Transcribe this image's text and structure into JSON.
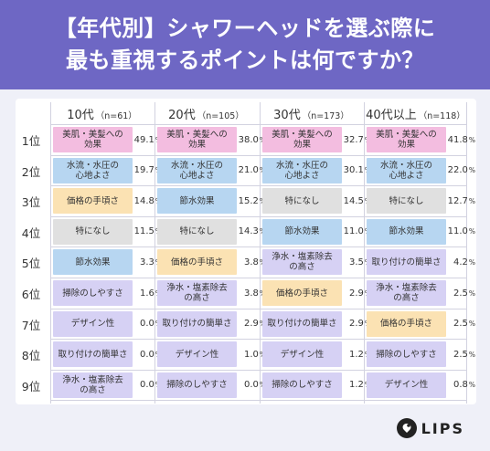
{
  "title": {
    "line1": "【年代別】シャワーヘッドを選ぶ際に",
    "line2": "最も重視するポイントは何ですか？"
  },
  "brand": "LIPS",
  "colors": {
    "header": "#6e67c4",
    "panel": "#eff0f8",
    "美肌・美髪への効果": "#f3bde0",
    "水流・水圧の心地よさ": "#b7d6f1",
    "価格の手頃さ": "#fbe2b3",
    "特になし": "#e0e0e0",
    "節水効果": "#b7d6f1",
    "取り付けの簡単さ": "#d6d1f4",
    "浄水・塩素除去の高さ": "#d6d1f4",
    "掃除のしやすさ": "#d6d1f4",
    "デザイン性": "#d6d1f4"
  },
  "chart_data": {
    "type": "table",
    "rank_labels": [
      "1位",
      "2位",
      "3位",
      "4位",
      "5位",
      "6位",
      "7位",
      "8位",
      "9位"
    ],
    "groups": [
      {
        "name": "10代",
        "n": "（n=61）",
        "items": [
          {
            "label": "美肌・美髪への\n効果",
            "value": "49.1",
            "unit": "%"
          },
          {
            "label": "水流・水圧の\n心地よさ",
            "value": "19.7",
            "unit": "%"
          },
          {
            "label": "価格の手頃さ",
            "value": "14.8",
            "unit": "%"
          },
          {
            "label": "特になし",
            "value": "11.5",
            "unit": "%"
          },
          {
            "label": "節水効果",
            "value": "3.3",
            "unit": "%"
          },
          {
            "label": "掃除のしやすさ",
            "value": "1.6",
            "unit": "%"
          },
          {
            "label": "デザイン性",
            "value": "0.0",
            "unit": "%"
          },
          {
            "label": "取り付けの簡単さ",
            "value": "0.0",
            "unit": "%"
          },
          {
            "label": "浄水・塩素除去\nの高さ",
            "value": "0.0",
            "unit": "%"
          }
        ]
      },
      {
        "name": "20代",
        "n": "（n=105）",
        "items": [
          {
            "label": "美肌・美髪への\n効果",
            "value": "38.0",
            "unit": "%"
          },
          {
            "label": "水流・水圧の\n心地よさ",
            "value": "21.0",
            "unit": "%"
          },
          {
            "label": "節水効果",
            "value": "15.2",
            "unit": "%"
          },
          {
            "label": "特になし",
            "value": "14.3",
            "unit": "%"
          },
          {
            "label": "価格の手頃さ",
            "value": "3.8",
            "unit": "%"
          },
          {
            "label": "浄水・塩素除去\nの高さ",
            "value": "3.8",
            "unit": "%"
          },
          {
            "label": "取り付けの簡単さ",
            "value": "2.9",
            "unit": "%"
          },
          {
            "label": "デザイン性",
            "value": "1.0",
            "unit": "%"
          },
          {
            "label": "掃除のしやすさ",
            "value": "0.0",
            "unit": "%"
          }
        ]
      },
      {
        "name": "30代",
        "n": "（n=173）",
        "items": [
          {
            "label": "美肌・美髪への\n効果",
            "value": "32.7",
            "unit": "%"
          },
          {
            "label": "水流・水圧の\n心地よさ",
            "value": "30.1",
            "unit": "%"
          },
          {
            "label": "特になし",
            "value": "14.5",
            "unit": "%"
          },
          {
            "label": "節水効果",
            "value": "11.0",
            "unit": "%"
          },
          {
            "label": "浄水・塩素除去\nの高さ",
            "value": "3.5",
            "unit": "%"
          },
          {
            "label": "価格の手頃さ",
            "value": "2.9",
            "unit": "%"
          },
          {
            "label": "取り付けの簡単さ",
            "value": "2.9",
            "unit": "%"
          },
          {
            "label": "デザイン性",
            "value": "1.2",
            "unit": "%"
          },
          {
            "label": "掃除のしやすさ",
            "value": "1.2",
            "unit": "%"
          }
        ]
      },
      {
        "name": "40代以上",
        "n": "（n=118）",
        "items": [
          {
            "label": "美肌・美髪への\n効果",
            "value": "41.8",
            "unit": "%"
          },
          {
            "label": "水流・水圧の\n心地よさ",
            "value": "22.0",
            "unit": "%"
          },
          {
            "label": "特になし",
            "value": "12.7",
            "unit": "%"
          },
          {
            "label": "節水効果",
            "value": "11.0",
            "unit": "%"
          },
          {
            "label": "取り付けの簡単さ",
            "value": "4.2",
            "unit": "%"
          },
          {
            "label": "浄水・塩素除去\nの高さ",
            "value": "2.5",
            "unit": "%"
          },
          {
            "label": "価格の手頃さ",
            "value": "2.5",
            "unit": "%"
          },
          {
            "label": "掃除のしやすさ",
            "value": "2.5",
            "unit": "%"
          },
          {
            "label": "デザイン性",
            "value": "0.8",
            "unit": "%"
          }
        ]
      }
    ]
  }
}
